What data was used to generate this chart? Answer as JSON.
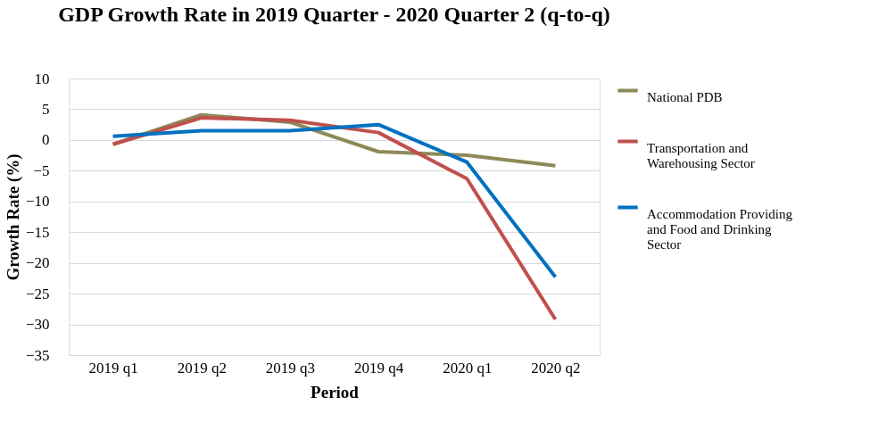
{
  "chart_data": {
    "type": "line",
    "title": "GDP Growth Rate in 2019 Quarter - 2020 Quarter 2 (q-to-q)",
    "xlabel": "Period",
    "ylabel": "Growth Rate (%)",
    "categories": [
      "2019 q1",
      "2019 q2",
      "2019 q3",
      "2019 q4",
      "2020 q1",
      "2020 q2"
    ],
    "series": [
      {
        "name": "National PDB",
        "color": "#8c8a57",
        "values": [
          -0.7,
          4.1,
          2.9,
          -1.9,
          -2.5,
          -4.2
        ]
      },
      {
        "name": "Transportation and Warehousing Sector",
        "color": "#c0504d",
        "values": [
          -0.7,
          3.6,
          3.2,
          1.2,
          -6.3,
          -29.2
        ]
      },
      {
        "name": "Accommodation Providing and Food and Drinking Sector",
        "color": "#0070c0",
        "values": [
          0.6,
          1.5,
          1.5,
          2.5,
          -3.6,
          -22.3
        ]
      }
    ],
    "ylim": [
      -35,
      10
    ],
    "yticks": [
      -35,
      -30,
      -25,
      -20,
      -15,
      -10,
      -5,
      0,
      5,
      10
    ],
    "grid": "y",
    "legend": "right",
    "marker": "none",
    "line_style": "solid"
  }
}
